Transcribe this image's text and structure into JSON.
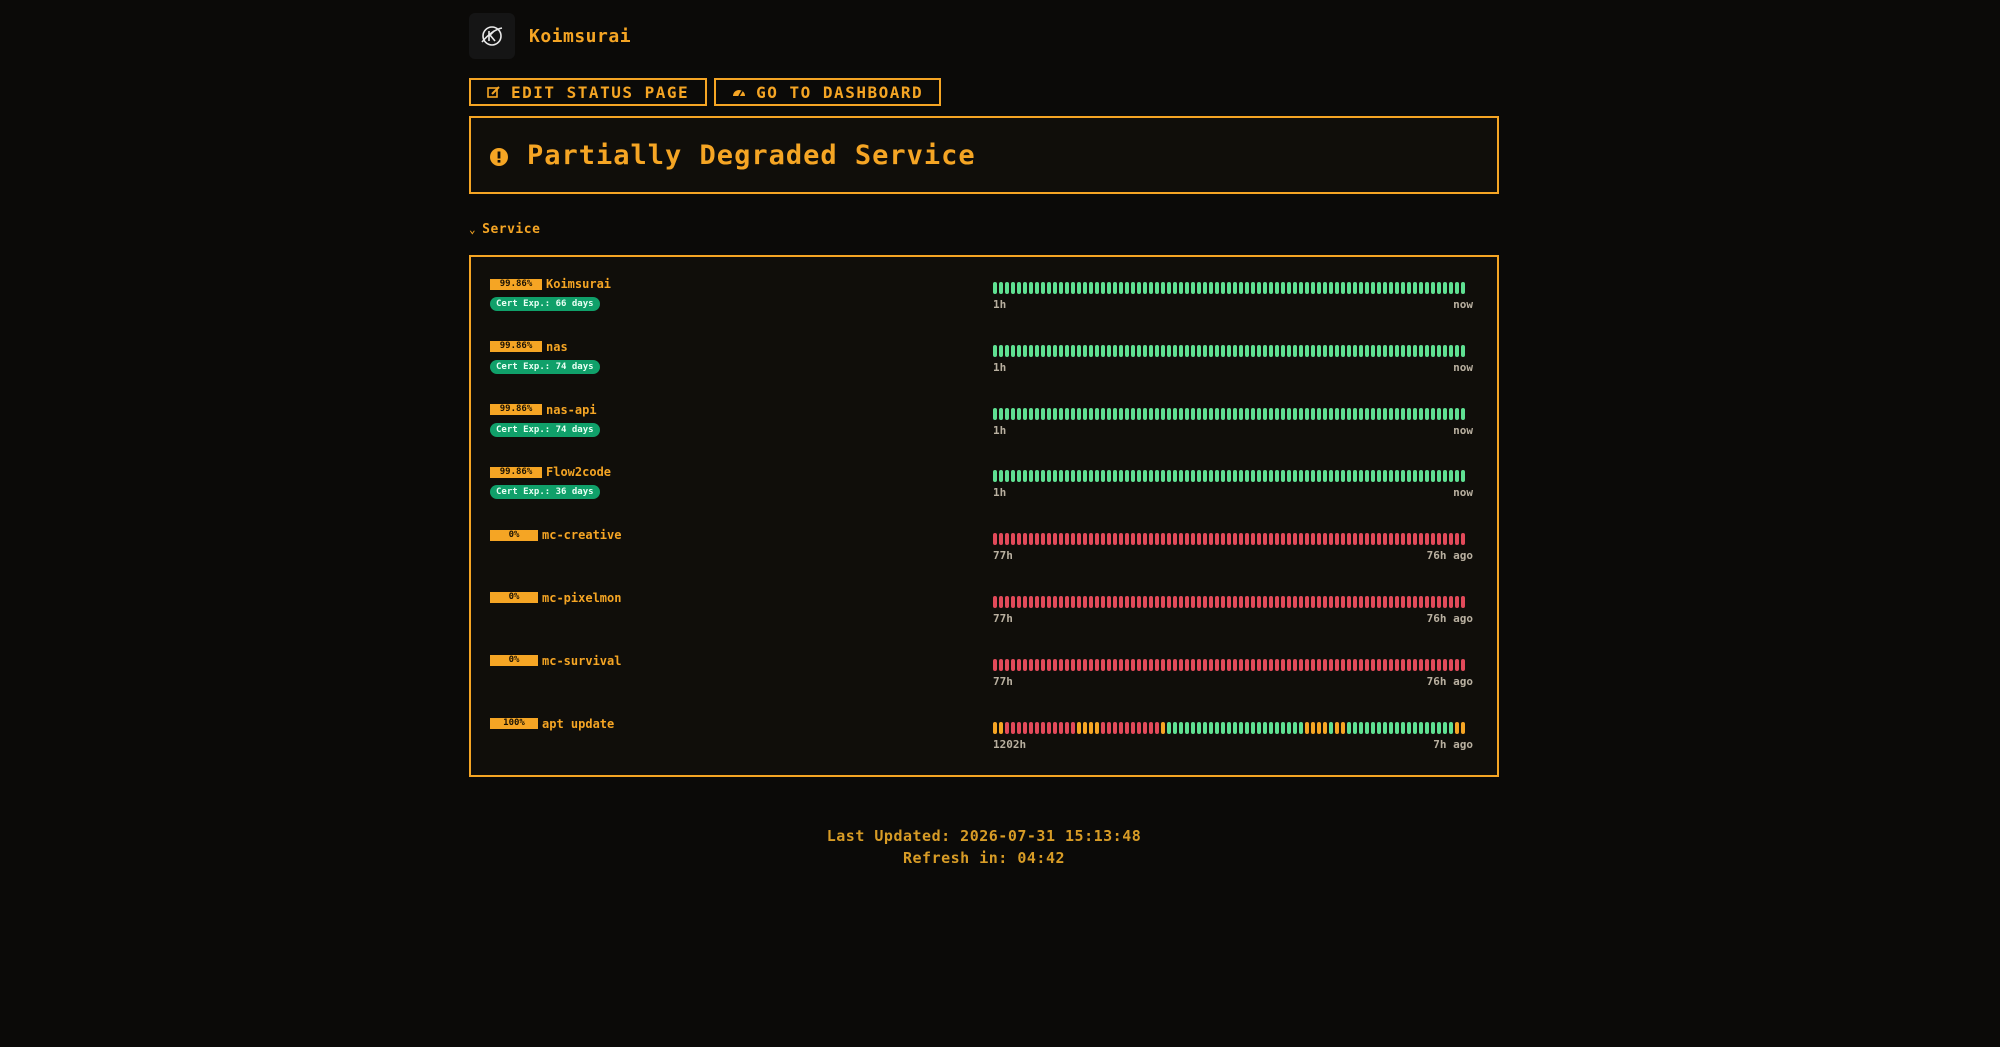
{
  "brand": {
    "name": "Koimsurai",
    "logo_icon": "koimsurai-logo-icon"
  },
  "actions": {
    "edit_label": "EDIT STATUS PAGE",
    "dashboard_label": "GO TO DASHBOARD"
  },
  "status": {
    "text": "Partially Degraded Service",
    "icon": "exclamation-circle-icon"
  },
  "group": {
    "title": "Service"
  },
  "monitors": [
    {
      "pct": "99.86%",
      "name": "Koimsurai",
      "cert": "Cert Exp.: 66 days",
      "from": "1h",
      "to": "now",
      "state": "up"
    },
    {
      "pct": "99.86%",
      "name": "nas",
      "cert": "Cert Exp.: 74 days",
      "from": "1h",
      "to": "now",
      "state": "up"
    },
    {
      "pct": "99.86%",
      "name": "nas-api",
      "cert": "Cert Exp.: 74 days",
      "from": "1h",
      "to": "now",
      "state": "up"
    },
    {
      "pct": "99.86%",
      "name": "Flow2code",
      "cert": "Cert Exp.: 36 days",
      "from": "1h",
      "to": "now",
      "state": "up"
    },
    {
      "pct": "0%",
      "name": "mc-creative",
      "cert": "",
      "from": "77h",
      "to": "76h ago",
      "state": "down"
    },
    {
      "pct": "0%",
      "name": "mc-pixelmon",
      "cert": "",
      "from": "77h",
      "to": "76h ago",
      "state": "down"
    },
    {
      "pct": "0%",
      "name": "mc-survival",
      "cert": "",
      "from": "77h",
      "to": "76h ago",
      "state": "down"
    },
    {
      "pct": "100%",
      "name": "apt update",
      "cert": "",
      "from": "1202h",
      "to": "7h ago",
      "state": "mixed",
      "pattern": "wwddddddddddddwwwwddddddddddwuuuuuuuuuuuuuuuuuuuuuuuwwwwuwwuuuuuuuuuuuuuuuuuuwwuuuuu"
    }
  ],
  "footer": {
    "last_updated": "Last Updated: 2026-07-31 15:13:48",
    "refresh": "Refresh in: 04:42"
  },
  "colors": {
    "accent": "#f5a524",
    "up": "#5fe092",
    "down": "#e24a5a",
    "cert": "#10a06a"
  }
}
